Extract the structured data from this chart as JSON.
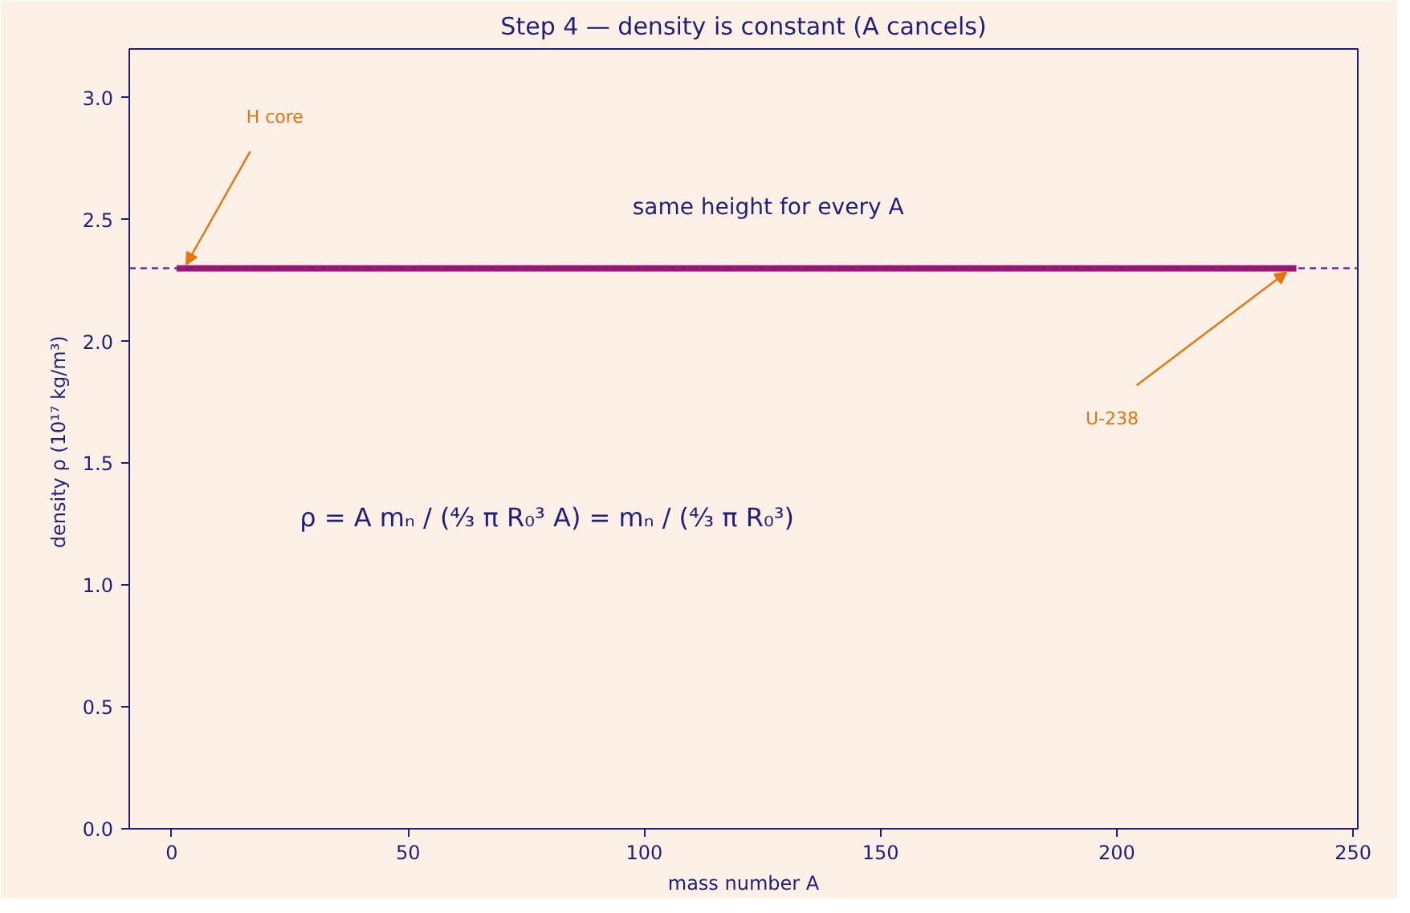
{
  "chart_data": {
    "type": "line",
    "title": "Step 4 — density is constant (A cancels)",
    "xlabel": "mass number A",
    "ylabel": "density ρ  (10¹⁷ kg/m³)",
    "series": [
      {
        "color": "#a0186e",
        "x": [
          1,
          238
        ],
        "values": [
          2.3,
          2.3
        ]
      }
    ],
    "xlim": [
      -9,
      251
    ],
    "xticks": [
      0,
      50,
      100,
      150,
      200,
      250
    ],
    "ylim": [
      0,
      3.2
    ],
    "yticks": [
      {
        "value": 0,
        "label": "0.0"
      },
      {
        "value": 0.5,
        "label": "0.5"
      },
      {
        "value": 1,
        "label": "1.0"
      },
      {
        "value": 1.5,
        "label": "1.5"
      },
      {
        "value": 2,
        "label": "2.0"
      },
      {
        "value": 2.5,
        "label": "2.5"
      },
      {
        "value": 3,
        "label": "3.0"
      }
    ],
    "ref_lines": [
      {
        "axis": "y",
        "value": 2.3,
        "color": "#6a1fa0",
        "line_style": "dashed"
      }
    ],
    "annotations": [
      "H core",
      "U-238",
      "same height for every A",
      "ρ = A mₙ / (⁴⁄₃ π R₀³ A) = mₙ / (⁴⁄₃ π R₀³)"
    ],
    "grid": false,
    "marker": "none",
    "line_style": "solid"
  }
}
